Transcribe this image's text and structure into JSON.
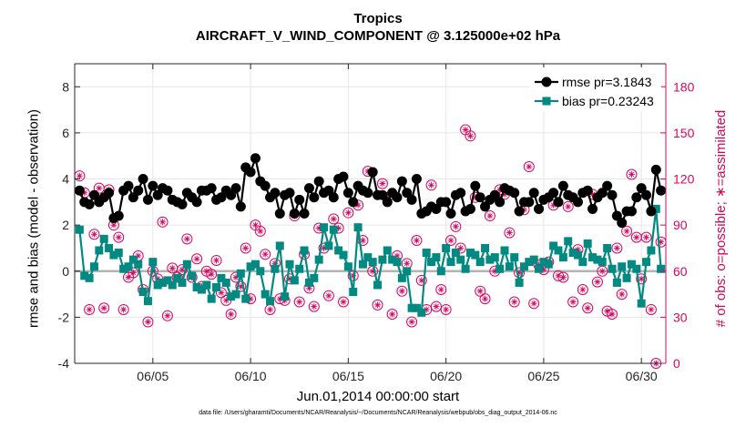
{
  "colors": {
    "rmse": "#000000",
    "bias": "#028a82",
    "obs": "#d6075e",
    "zero_line": "#b4b4b4",
    "grid": "#e6e6e6"
  },
  "chart_data": {
    "type": "line",
    "title": "Tropics",
    "subtitle": "AIRCRAFT_V_WIND_COMPONENT @ 3.125000e+02 hPa",
    "xlabel": "Jun.01,2014 00:00:00 start",
    "ylabel": "rmse and bias (model - observation)",
    "ylabel_right": "# of obs: o=possible; ∗=assimilated",
    "footer": "data file: /Users/gharamti/Documents/NCAR/Reanalysis/~/Documents/NCAR/Reanalysis/webpub/obs_diag_output_2014-06.nc",
    "xlim": [
      1,
      31.25
    ],
    "ylim": [
      -4,
      9
    ],
    "ylim_right": [
      0,
      195
    ],
    "x_ticks": [
      5,
      10,
      15,
      20,
      25,
      30
    ],
    "x_tick_labels": [
      "06/05",
      "06/10",
      "06/15",
      "06/20",
      "06/25",
      "06/30"
    ],
    "y_ticks": [
      -4,
      -2,
      0,
      2,
      4,
      6,
      8
    ],
    "y_tick_labels": [
      "-4",
      "-2",
      "0",
      "2",
      "4",
      "6",
      "8"
    ],
    "y_right_ticks": [
      0,
      30,
      60,
      90,
      120,
      150,
      180
    ],
    "y_right_tick_labels": [
      "0",
      "30",
      "60",
      "90",
      "120",
      "150",
      "180"
    ],
    "grid": true,
    "legend_position": "top-right",
    "legend": [
      "rmse pr=3.1843",
      "bias pr=0.23243"
    ],
    "x": [
      1.25,
      1.5,
      1.75,
      2.0,
      2.25,
      2.5,
      2.75,
      3.0,
      3.25,
      3.5,
      3.75,
      4.0,
      4.25,
      4.5,
      4.75,
      5.0,
      5.25,
      5.5,
      5.75,
      6.0,
      6.25,
      6.5,
      6.75,
      7.0,
      7.25,
      7.5,
      7.75,
      8.0,
      8.25,
      8.5,
      8.75,
      9.0,
      9.25,
      9.5,
      9.75,
      10.0,
      10.25,
      10.5,
      10.75,
      11.0,
      11.25,
      11.5,
      11.75,
      12.0,
      12.25,
      12.5,
      12.75,
      13.0,
      13.25,
      13.5,
      13.75,
      14.0,
      14.25,
      14.5,
      14.75,
      15.0,
      15.25,
      15.5,
      15.75,
      16.0,
      16.25,
      16.5,
      16.75,
      17.0,
      17.25,
      17.5,
      17.75,
      18.0,
      18.25,
      18.5,
      18.75,
      19.0,
      19.25,
      19.5,
      19.75,
      20.0,
      20.25,
      20.5,
      20.75,
      21.0,
      21.25,
      21.5,
      21.75,
      22.0,
      22.25,
      22.5,
      22.75,
      23.0,
      23.25,
      23.5,
      23.75,
      24.0,
      24.25,
      24.5,
      24.75,
      25.0,
      25.25,
      25.5,
      25.75,
      26.0,
      26.25,
      26.5,
      26.75,
      27.0,
      27.25,
      27.5,
      27.75,
      28.0,
      28.25,
      28.5,
      28.75,
      29.0,
      29.25,
      29.5,
      29.75,
      30.0,
      30.25,
      30.5,
      30.75,
      31.0
    ],
    "series": [
      {
        "name": "rmse pr=3.1843",
        "axis": "left",
        "marker": "circle",
        "values": [
          3.5,
          3.0,
          2.9,
          3.3,
          3.0,
          3.2,
          3.4,
          2.3,
          2.4,
          3.5,
          3.7,
          3.2,
          3.5,
          4.0,
          3.1,
          3.7,
          3.3,
          3.6,
          3.5,
          3.1,
          3.0,
          2.9,
          3.4,
          3.2,
          3.0,
          3.5,
          3.5,
          3.6,
          3.1,
          3.2,
          3.5,
          3.3,
          3.6,
          2.8,
          4.5,
          4.3,
          4.9,
          3.9,
          3.7,
          3.2,
          3.4,
          2.5,
          3.3,
          3.4,
          2.5,
          3.1,
          2.5,
          3.6,
          3.2,
          3.9,
          3.4,
          3.5,
          3.2,
          4.0,
          4.1,
          3.4,
          3.0,
          3.7,
          3.5,
          3.4,
          4.3,
          3.3,
          3.3,
          3.0,
          3.4,
          3.2,
          3.9,
          3.4,
          3.1,
          4.0,
          2.5,
          2.6,
          2.8,
          2.7,
          3.0,
          3.0,
          2.5,
          3.3,
          3.4,
          2.6,
          2.7,
          3.7,
          3.2,
          2.8,
          3.1,
          3.3,
          3.0,
          3.6,
          3.5,
          3.4,
          2.6,
          3.0,
          3.0,
          3.4,
          2.7,
          3.1,
          3.2,
          3.4,
          3.0,
          3.7,
          3.3,
          3.2,
          3.0,
          3.4,
          3.5,
          2.7,
          3.2,
          3.4,
          3.7,
          3.3,
          2.4,
          2.1,
          2.6,
          2.6,
          3.2,
          3.6,
          3.3,
          2.6,
          4.4,
          3.5
        ]
      },
      {
        "name": "bias pr=0.23243",
        "axis": "left",
        "marker": "square",
        "values": [
          1.8,
          -0.2,
          -0.3,
          0.2,
          0.9,
          1.4,
          1.0,
          0.7,
          0.8,
          0.1,
          0.2,
          0.5,
          0.3,
          -0.9,
          -1.3,
          0.4,
          -0.6,
          -0.5,
          -0.4,
          -0.6,
          -0.3,
          -0.5,
          0.3,
          -0.2,
          -0.7,
          -0.8,
          -0.6,
          -1.2,
          -0.7,
          -0.3,
          -0.5,
          -1.1,
          -1.0,
          -0.1,
          -1.2,
          0.2,
          0.3,
          0.0,
          -1.0,
          -1.3,
          0.1,
          1.1,
          -1.1,
          0.3,
          -0.4,
          0.1,
          0.9,
          -0.5,
          -0.3,
          0.5,
          1.9,
          1.1,
          1.8,
          0.9,
          0.7,
          0.2,
          -0.9,
          1.9,
          0.3,
          0.6,
          0.4,
          -0.6,
          0.5,
          0.9,
          0.5,
          0.4,
          -0.3,
          0.0,
          -1.6,
          -1.6,
          -1.8,
          0.8,
          0.4,
          0.6,
          0.0,
          1.0,
          0.4,
          0.8,
          0.5,
          0.1,
          0.8,
          0.7,
          0.4,
          1.0,
          0.5,
          0.6,
          0.1,
          0.9,
          0.2,
          0.6,
          -0.5,
          0.2,
          0.4,
          0.5,
          0.1,
          0.4,
          0.3,
          1.1,
          0.9,
          0.6,
          1.3,
          0.8,
          0.7,
          0.4,
          1.2,
          0.6,
          0.5,
          0.4,
          1.0,
          0.1,
          -0.5,
          0.2,
          -0.3,
          0.3,
          0.1,
          -1.4,
          0.4,
          0.9,
          2.7,
          0.1
        ]
      },
      {
        "name": "# of obs (possible / assimilated)",
        "axis": "right",
        "marker": "circle-asterisk",
        "values": [
          122,
          111,
          35,
          84,
          114,
          36,
          113,
          90,
          82,
          35,
          56,
          59,
          70,
          48,
          27,
          60,
          55,
          92,
          31,
          62,
          56,
          61,
          81,
          56,
          68,
          50,
          60,
          58,
          67,
          46,
          41,
          32,
          56,
          50,
          75,
          42,
          90,
          86,
          71,
          35,
          65,
          42,
          41,
          55,
          96,
          40,
          71,
          49,
          37,
          88,
          75,
          44,
          94,
          88,
          40,
          98,
          57,
          103,
          80,
          125,
          60,
          38,
          117,
          108,
          32,
          70,
          47,
          65,
          27,
          80,
          54,
          35,
          116,
          37,
          48,
          35,
          80,
          89,
          75,
          152,
          148,
          108,
          47,
          42,
          96,
          60,
          113,
          110,
          85,
          40,
          59,
          100,
          128,
          39,
          64,
          61,
          66,
          103,
          57,
          56,
          102,
          40,
          74,
          48,
          36,
          110,
          53,
          60,
          34,
          32,
          75,
          45,
          86,
          123,
          82,
          55,
          82,
          35,
          0,
          79
        ]
      }
    ]
  }
}
